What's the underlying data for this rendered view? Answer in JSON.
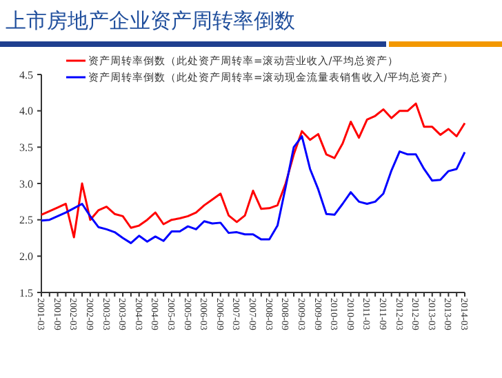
{
  "chart_data": {
    "type": "line",
    "title": "上市房地产企业资产周转率倒数",
    "categories": [
      "2001-03",
      null,
      "2001-09",
      null,
      "2002-03",
      null,
      "2002-09",
      null,
      "2003-03",
      null,
      "2003-09",
      null,
      "2004-03",
      null,
      "2004-09",
      null,
      "2005-03",
      null,
      "2005-09",
      null,
      "2006-03",
      null,
      "2006-09",
      null,
      "2007-03",
      null,
      "2007-09",
      null,
      "2008-03",
      null,
      "2008-09",
      null,
      "2009-03",
      null,
      "2009-09",
      null,
      "2010-03",
      null,
      "2010-09",
      null,
      "2011-03",
      null,
      "2011-09",
      null,
      "2012-03",
      null,
      "2012-09",
      null,
      "2013-03",
      null,
      "2013-09",
      null,
      "2014-03"
    ],
    "series": [
      {
        "name": "资产周转率倒数（此处资产周转率=滚动营业收入/平均总资产）",
        "color": "#ff0000",
        "values": [
          2.57,
          2.62,
          2.67,
          2.72,
          2.26,
          3.0,
          2.5,
          2.63,
          2.68,
          2.58,
          2.55,
          2.39,
          2.42,
          2.5,
          2.6,
          2.44,
          2.5,
          2.52,
          2.55,
          2.6,
          2.7,
          2.78,
          2.86,
          2.56,
          2.47,
          2.56,
          2.9,
          2.65,
          2.66,
          2.7,
          3.0,
          3.4,
          3.72,
          3.6,
          3.68,
          3.4,
          3.35,
          3.55,
          3.85,
          3.63,
          3.88,
          3.93,
          4.02,
          3.9,
          4.0,
          4.0,
          4.1,
          3.78,
          3.78,
          3.67,
          3.75,
          3.65,
          3.83
        ]
      },
      {
        "name": "资产周转率倒数（此处资产周转率=滚动现金流量表销售收入/平均总资产）",
        "color": "#0000ff",
        "values": [
          2.49,
          2.5,
          2.55,
          2.6,
          2.66,
          2.72,
          2.55,
          2.4,
          2.37,
          2.33,
          2.25,
          2.18,
          2.28,
          2.2,
          2.27,
          2.21,
          2.34,
          2.34,
          2.41,
          2.37,
          2.48,
          2.45,
          2.46,
          2.32,
          2.33,
          2.3,
          2.3,
          2.23,
          2.23,
          2.42,
          2.95,
          3.5,
          3.65,
          3.2,
          2.92,
          2.58,
          2.57,
          2.72,
          2.88,
          2.75,
          2.72,
          2.75,
          2.86,
          3.18,
          3.44,
          3.4,
          3.4,
          3.2,
          3.04,
          3.05,
          3.17,
          3.2,
          3.43
        ]
      }
    ],
    "ylim": [
      1.5,
      4.5
    ],
    "yticks": [
      {
        "value": 1.5,
        "label": "1.5"
      },
      {
        "value": 2,
        "label": "2.0"
      },
      {
        "value": 2.5,
        "label": "2.5"
      },
      {
        "value": 3,
        "label": "3.0"
      },
      {
        "value": 3.5,
        "label": "3.5"
      },
      {
        "value": 4,
        "label": "4.0"
      },
      {
        "value": 4.5,
        "label": "4.5"
      }
    ],
    "grid": false,
    "legend": "top",
    "marker": "none",
    "line_style": "solid"
  }
}
